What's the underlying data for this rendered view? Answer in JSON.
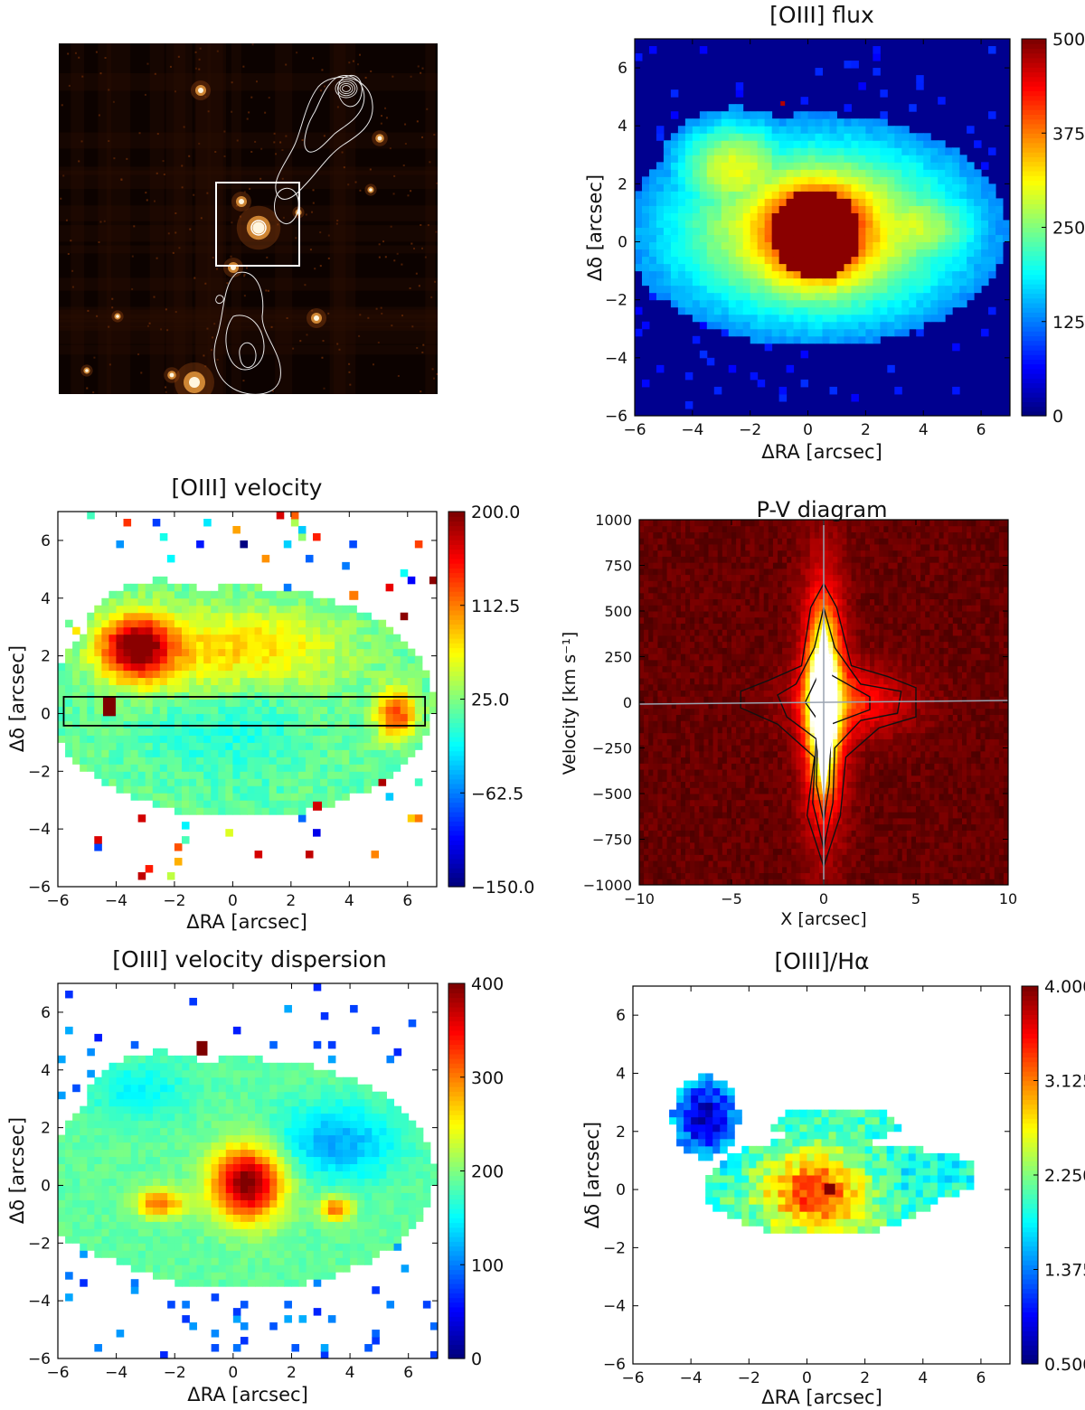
{
  "figure": {
    "panels": [
      {
        "id": "image",
        "kind": "image-with-contours",
        "title": ""
      },
      {
        "id": "flux",
        "kind": "map",
        "title": "[OIII] flux",
        "xlabel": "ΔRA [arcsec]",
        "ylabel": "Δδ [arcsec]",
        "xlim": [
          -6,
          7
        ],
        "ylim": [
          -6,
          7
        ],
        "xticks": [
          "−6",
          "−4",
          "−2",
          "0",
          "2",
          "4",
          "6"
        ],
        "yticks": [
          "−6",
          "−4",
          "−2",
          "0",
          "2",
          "4",
          "6"
        ],
        "colorbar": {
          "min": 0,
          "max": 500,
          "ticks": [
            "0",
            "125",
            "250",
            "375",
            "500"
          ]
        },
        "colormap": "jet"
      },
      {
        "id": "velocity",
        "kind": "map",
        "title": "[OIII] velocity",
        "xlabel": "ΔRA [arcsec]",
        "ylabel": "Δδ [arcsec]",
        "xlim": [
          -6,
          7
        ],
        "ylim": [
          -6,
          7
        ],
        "xticks": [
          "−6",
          "−4",
          "−2",
          "0",
          "2",
          "4",
          "6"
        ],
        "yticks": [
          "−6",
          "−4",
          "−2",
          "0",
          "2",
          "4",
          "6"
        ],
        "colorbar": {
          "min": -150,
          "max": 200,
          "ticks": [
            "−150.0",
            "−62.5",
            "25.0",
            "112.5",
            "200.0"
          ]
        },
        "colormap": "jet"
      },
      {
        "id": "pv",
        "kind": "pv-diagram",
        "title": "P-V diagram",
        "xlabel": "X [arcsec]",
        "ylabel": "Velocity [km s⁻¹]",
        "xlim": [
          -10,
          10
        ],
        "ylim": [
          -1000,
          1000
        ],
        "xticks": [
          "−10",
          "−5",
          "0",
          "5",
          "10"
        ],
        "yticks": [
          "−1000",
          "−750",
          "−500",
          "−250",
          "0",
          "250",
          "500",
          "750",
          "1000"
        ],
        "colormap": "hot"
      },
      {
        "id": "dispersion",
        "kind": "map",
        "title": "[OIII] velocity dispersion",
        "xlabel": "ΔRA [arcsec]",
        "ylabel": "Δδ [arcsec]",
        "xlim": [
          -6,
          7
        ],
        "ylim": [
          -6,
          7
        ],
        "xticks": [
          "−6",
          "−4",
          "−2",
          "0",
          "2",
          "4",
          "6"
        ],
        "yticks": [
          "−6",
          "−4",
          "−2",
          "0",
          "2",
          "4",
          "6"
        ],
        "colorbar": {
          "min": 0,
          "max": 400,
          "ticks": [
            "0",
            "100",
            "200",
            "300",
            "400"
          ]
        },
        "colormap": "jet"
      },
      {
        "id": "ratio",
        "kind": "map",
        "title": "[OIII]/Hα",
        "xlabel": "ΔRA [arcsec]",
        "ylabel": "Δδ [arcsec]",
        "xlim": [
          -6,
          7
        ],
        "ylim": [
          -6,
          7
        ],
        "xticks": [
          "−6",
          "−4",
          "−2",
          "0",
          "2",
          "4",
          "6"
        ],
        "yticks": [
          "−6",
          "−4",
          "−2",
          "0",
          "2",
          "4",
          "6"
        ],
        "colorbar": {
          "min": 0.5,
          "max": 4.0,
          "ticks": [
            "0.500",
            "1.375",
            "2.250",
            "3.125",
            "4.000"
          ]
        },
        "colormap": "jet"
      }
    ]
  },
  "chart_data": [
    {
      "type": "heatmap",
      "title": "",
      "xlabel": "",
      "ylabel": "",
      "note": "optical image with radio contours and a square box around the central source"
    },
    {
      "type": "heatmap",
      "title": "[OIII] flux",
      "xlabel": "ΔRA [arcsec]",
      "ylabel": "Δδ [arcsec]",
      "xlim": [
        -6,
        7
      ],
      "ylim": [
        -6,
        7
      ],
      "clim": [
        0,
        500
      ],
      "features": {
        "peak_center": [
          0.3,
          0.3
        ],
        "peak_radius": 1.5,
        "peak_value": 500,
        "extended_region_x": [
          -4.5,
          6.0
        ],
        "extended_region_y": [
          -2.5,
          4.0
        ]
      }
    },
    {
      "type": "heatmap",
      "title": "[OIII] velocity",
      "xlabel": "ΔRA [arcsec]",
      "ylabel": "Δδ [arcsec]",
      "xlim": [
        -6,
        7
      ],
      "ylim": [
        -6,
        7
      ],
      "clim": [
        -150,
        200
      ],
      "features": {
        "redshifted_blob_center": [
          -3.3,
          2.3
        ],
        "redshifted_peak": 200,
        "slit_box_x": [
          -5.8,
          6.6
        ],
        "slit_box_y": [
          -0.4,
          0.6
        ]
      }
    },
    {
      "type": "heatmap",
      "title": "P-V diagram",
      "xlabel": "X [arcsec]",
      "ylabel": "Velocity [km s⁻¹]",
      "xlim": [
        -10,
        10
      ],
      "ylim": [
        -1000,
        1000
      ],
      "features": {
        "core_x_halfwidth": 0.4,
        "core_v_range": [
          -550,
          480
        ],
        "extension_x": [
          -4,
          5
        ],
        "extension_v_range": [
          -100,
          120
        ]
      }
    },
    {
      "type": "heatmap",
      "title": "[OIII] velocity dispersion",
      "xlabel": "ΔRA [arcsec]",
      "ylabel": "Δδ [arcsec]",
      "xlim": [
        -6,
        7
      ],
      "ylim": [
        -6,
        7
      ],
      "clim": [
        0,
        400
      ],
      "features": {
        "nuclear_peak_center": [
          0.5,
          0.0
        ],
        "nuclear_peak_value": 400,
        "typical_value": 200
      }
    },
    {
      "type": "heatmap",
      "title": "[OIII]/Hα",
      "xlabel": "ΔRA [arcsec]",
      "ylabel": "Δδ [arcsec]",
      "xlim": [
        -6,
        7
      ],
      "ylim": [
        -6,
        7
      ],
      "clim": [
        0.5,
        4.0
      ],
      "features": {
        "high_ratio_center": [
          0.2,
          0.0
        ],
        "high_ratio_value": 3.6,
        "low_ratio_region_center": [
          -3.6,
          2.7
        ],
        "low_ratio_value": 0.8
      }
    }
  ]
}
